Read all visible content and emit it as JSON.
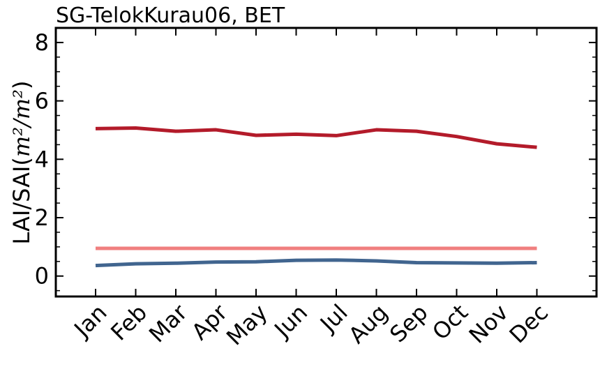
{
  "chart_data": {
    "type": "line",
    "title": "SG-TelokKurau06, BET",
    "xlabel": "",
    "ylabel": "LAI/SAI(",
    "ylabel_math": "m²/m²",
    "ylabel_close": ")",
    "categories": [
      "Jan",
      "Feb",
      "Mar",
      "Apr",
      "May",
      "Jun",
      "Jul",
      "Aug",
      "Sep",
      "Oct",
      "Nov",
      "Dec"
    ],
    "ylim": [
      -0.7,
      8.5
    ],
    "yticks": [
      0,
      2,
      4,
      6,
      8
    ],
    "grid": false,
    "legend": "none",
    "series": [
      {
        "color": "#b31b2a",
        "values": [
          5.05,
          5.07,
          4.96,
          5.01,
          4.82,
          4.86,
          4.81,
          5.01,
          4.96,
          4.78,
          4.53,
          4.41
        ]
      },
      {
        "color": "#f07f7f",
        "values": [
          0.95,
          0.95,
          0.95,
          0.95,
          0.95,
          0.95,
          0.95,
          0.95,
          0.95,
          0.95,
          0.95,
          0.95
        ]
      },
      {
        "color": "#41658f",
        "values": [
          0.36,
          0.42,
          0.44,
          0.48,
          0.49,
          0.54,
          0.55,
          0.52,
          0.46,
          0.45,
          0.44,
          0.46
        ]
      }
    ]
  }
}
